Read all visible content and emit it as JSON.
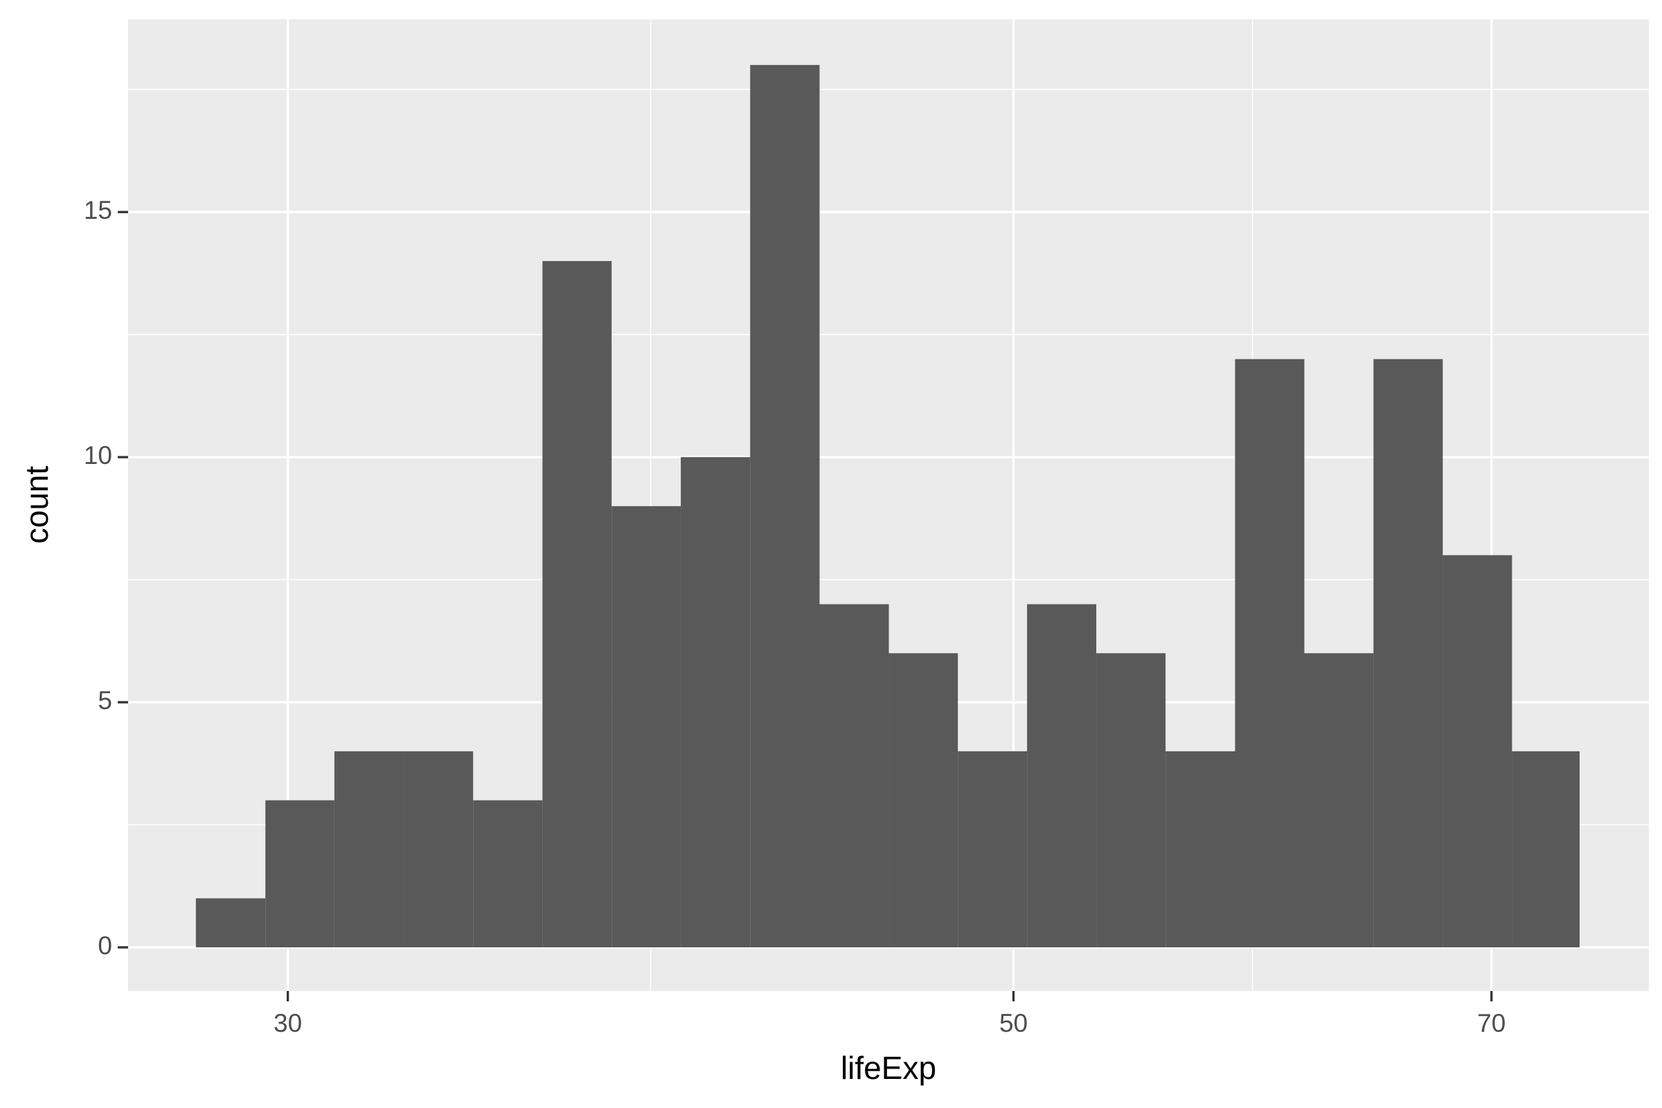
{
  "chart_data": {
    "type": "histogram",
    "x_label": "lifeExp",
    "y_label": "count",
    "bins": [
      28.12,
      29.53,
      31.0,
      32.55,
      34.18,
      35.89,
      37.68,
      39.56,
      41.54,
      43.62,
      45.8,
      48.08,
      50.48,
      53.0,
      55.65,
      58.44,
      61.36,
      64.42,
      67.64,
      71.02,
      74.48
    ],
    "values": [
      1,
      3,
      4,
      4,
      3,
      14,
      9,
      10,
      18,
      7,
      6,
      4,
      7,
      6,
      4,
      12,
      6,
      12,
      8,
      4
    ],
    "color": "#595959",
    "panel_color": "#ebebeb",
    "grid_color": "#ffffff",
    "xscale": "log",
    "xlim": [
      26.81,
      78.2
    ],
    "xticks": [
      30,
      50,
      70
    ],
    "x_minor_gridlines": [
      38.73,
      59.16
    ],
    "ylim": [
      -0.89,
      18.93
    ],
    "yticks": [
      0,
      5,
      10,
      15
    ],
    "y_minor_gridlines": [
      2.5,
      7.5,
      12.5,
      17.5
    ],
    "grid": true
  }
}
